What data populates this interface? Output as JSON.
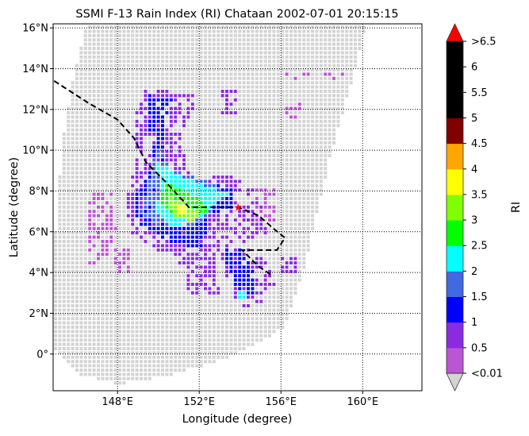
{
  "chart_data": {
    "type": "heatmap",
    "title": "SSMI F-13 Rain Index (RI) Chataan 2002-07-01 20:15:15",
    "xlabel": "Longitude (degree)",
    "ylabel": "Latitude (degree)",
    "xlim": [
      144.85,
      162.9
    ],
    "ylim": [
      -1.8,
      16.2
    ],
    "grid": true,
    "x_ticks": [
      {
        "value": 148,
        "label": "148°E"
      },
      {
        "value": 152,
        "label": "152°E"
      },
      {
        "value": 156,
        "label": "156°E"
      },
      {
        "value": 160,
        "label": "160°E"
      }
    ],
    "y_ticks": [
      {
        "value": 0,
        "label": "0°"
      },
      {
        "value": 2,
        "label": "2°N"
      },
      {
        "value": 4,
        "label": "4°N"
      },
      {
        "value": 6,
        "label": "6°N"
      },
      {
        "value": 8,
        "label": "8°N"
      },
      {
        "value": 10,
        "label": "10°N"
      },
      {
        "value": 12,
        "label": "12°N"
      },
      {
        "value": 14,
        "label": "14°N"
      },
      {
        "value": 16,
        "label": "16°N"
      }
    ],
    "swath_outline": [
      [
        146.4,
        16.2
      ],
      [
        145.7,
        13.4
      ],
      [
        145.2,
        10.3
      ],
      [
        144.85,
        5.6
      ],
      [
        144.85,
        0.2
      ],
      [
        146.2,
        -1.0
      ],
      [
        148.1,
        -1.4
      ],
      [
        150.4,
        -1.0
      ],
      [
        153.1,
        -0.2
      ],
      [
        155.1,
        0.8
      ],
      [
        156.1,
        1.4
      ],
      [
        157.1,
        4.5
      ],
      [
        158.3,
        9.6
      ],
      [
        159.5,
        13.9
      ],
      [
        160.1,
        16.2
      ]
    ],
    "no_rain_color": "#d3d3d3",
    "rain_regions": [
      {
        "ri": 0.8,
        "density": 0.6,
        "polygon": [
          [
            149.24,
            13.08
          ],
          [
            151.76,
            12.89
          ],
          [
            151.57,
            11.91
          ],
          [
            150.99,
            10.74
          ],
          [
            151.37,
            8.99
          ],
          [
            153.7,
            8.79
          ],
          [
            154.87,
            8.01
          ],
          [
            155.26,
            6.06
          ],
          [
            154.0,
            5.28
          ],
          [
            152.73,
            4.89
          ],
          [
            151.57,
            4.11
          ],
          [
            150.4,
            4.89
          ],
          [
            148.46,
            6.06
          ],
          [
            148.27,
            7.62
          ],
          [
            148.85,
            9.57
          ],
          [
            148.85,
            11.91
          ]
        ]
      },
      {
        "ri": 0.3,
        "density": 0.6,
        "polygon": [
          [
            146.52,
            8.01
          ],
          [
            147.68,
            8.01
          ],
          [
            147.88,
            6.06
          ],
          [
            147.49,
            4.5
          ],
          [
            146.52,
            4.5
          ],
          [
            146.44,
            6.45
          ]
        ]
      },
      {
        "ri": 0.3,
        "density": 0.5,
        "polygon": [
          [
            147.68,
            5.28
          ],
          [
            148.66,
            5.28
          ],
          [
            148.66,
            3.72
          ],
          [
            147.68,
            3.72
          ]
        ]
      },
      {
        "ri": 0.5,
        "density": 0.55,
        "polygon": [
          [
            151.18,
            4.89
          ],
          [
            152.73,
            4.89
          ],
          [
            152.93,
            2.94
          ],
          [
            151.18,
            2.94
          ]
        ]
      },
      {
        "ri": 0.8,
        "density": 0.6,
        "polygon": [
          [
            152.93,
            5.67
          ],
          [
            154.29,
            5.48
          ],
          [
            155.26,
            4.5
          ],
          [
            155.65,
            3.53
          ],
          [
            155.07,
            2.55
          ],
          [
            153.9,
            2.36
          ],
          [
            153.12,
            4.11
          ]
        ]
      },
      {
        "ri": 0.8,
        "density": 0.8,
        "polygon": [
          [
            155.99,
            4.89
          ],
          [
            156.77,
            4.89
          ],
          [
            156.77,
            3.92
          ],
          [
            155.99,
            3.92
          ]
        ]
      },
      {
        "ri": 0.5,
        "density": 0.45,
        "polygon": [
          [
            152.93,
            13.0
          ],
          [
            153.9,
            13.0
          ],
          [
            153.9,
            11.91
          ],
          [
            152.93,
            11.91
          ]
        ]
      },
      {
        "ri": 0.3,
        "density": 0.45,
        "polygon": [
          [
            156.03,
            12.38
          ],
          [
            157.0,
            12.38
          ],
          [
            157.0,
            11.52
          ],
          [
            156.03,
            11.52
          ]
        ]
      },
      {
        "ri": 0.3,
        "density": 0.35,
        "polygon": [
          [
            155.96,
            13.86
          ],
          [
            159.09,
            13.86
          ],
          [
            159.09,
            13.47
          ],
          [
            155.96,
            13.47
          ]
        ]
      },
      {
        "ri": 0.3,
        "density": 0.55,
        "polygon": [
          [
            154.67,
            8.21
          ],
          [
            155.65,
            8.21
          ],
          [
            155.65,
            6.45
          ],
          [
            154.67,
            6.45
          ]
        ]
      },
      {
        "ri": 1.3,
        "density": 0.85,
        "polygon": [
          [
            149.43,
            12.77
          ],
          [
            150.6,
            12.69
          ],
          [
            150.21,
            11.52
          ],
          [
            150.21,
            9.18
          ],
          [
            152.15,
            8.6
          ],
          [
            153.51,
            8.21
          ],
          [
            153.51,
            7.23
          ],
          [
            152.35,
            6.84
          ],
          [
            152.15,
            5.28
          ],
          [
            150.6,
            5.48
          ],
          [
            149.04,
            6.26
          ],
          [
            148.66,
            7.62
          ],
          [
            149.63,
            9.18
          ],
          [
            149.43,
            11.52
          ]
        ]
      },
      {
        "ri": 1.3,
        "density": 0.85,
        "polygon": [
          [
            153.12,
            5.28
          ],
          [
            153.9,
            5.28
          ],
          [
            154.68,
            4.11
          ],
          [
            154.68,
            2.94
          ],
          [
            153.9,
            2.86
          ],
          [
            153.32,
            4.11
          ]
        ]
      },
      {
        "ri": 1.8,
        "density": 0.9,
        "polygon": [
          [
            149.82,
            10.35
          ],
          [
            150.6,
            9.18
          ],
          [
            152.73,
            8.4
          ],
          [
            153.32,
            7.82
          ],
          [
            152.54,
            7.04
          ],
          [
            151.57,
            6.26
          ],
          [
            150.0,
            6.26
          ],
          [
            149.04,
            7.04
          ],
          [
            149.43,
            8.4
          ]
        ]
      },
      {
        "ri": 2.3,
        "density": 1,
        "polygon": [
          [
            149.82,
            9.57
          ],
          [
            150.6,
            8.99
          ],
          [
            152.54,
            8.21
          ],
          [
            153.32,
            7.93
          ],
          [
            152.73,
            7.43
          ],
          [
            151.76,
            6.65
          ],
          [
            150.6,
            6.26
          ],
          [
            149.82,
            7.04
          ],
          [
            150.01,
            8.21
          ]
        ]
      },
      {
        "ri": 2.3,
        "density": 1,
        "polygon": [
          [
            153.9,
            3.14
          ],
          [
            154.29,
            3.14
          ],
          [
            154.29,
            2.75
          ],
          [
            153.9,
            2.75
          ]
        ]
      },
      {
        "ri": 2.8,
        "density": 1,
        "polygon": [
          [
            150.21,
            8.6
          ],
          [
            150.99,
            8.21
          ],
          [
            151.96,
            7.62
          ],
          [
            152.35,
            7.15
          ],
          [
            151.76,
            6.65
          ],
          [
            150.79,
            6.84
          ],
          [
            150.01,
            7.43
          ]
        ]
      },
      {
        "ri": 3.3,
        "density": 1,
        "polygon": [
          [
            150.4,
            7.82
          ],
          [
            151.37,
            7.43
          ],
          [
            151.96,
            6.96
          ],
          [
            151.57,
            6.57
          ],
          [
            150.6,
            6.84
          ]
        ]
      },
      {
        "ri": 3.8,
        "density": 1,
        "polygon": [
          [
            150.87,
            7.43
          ],
          [
            151.3,
            7.43
          ],
          [
            151.3,
            7.04
          ],
          [
            150.87,
            7.04
          ]
        ]
      }
    ],
    "track": [
      [
        144.9,
        13.4
      ],
      [
        146.6,
        12.3
      ],
      [
        148.0,
        11.5
      ],
      [
        148.8,
        10.6
      ],
      [
        149.4,
        9.4
      ],
      [
        150.4,
        8.4
      ],
      [
        151.5,
        7.2
      ],
      [
        152.4,
        7.2
      ],
      [
        153.9,
        7.2
      ],
      [
        154.9,
        6.8
      ],
      [
        155.7,
        6.1
      ],
      [
        156.2,
        5.7
      ],
      [
        155.8,
        5.1
      ],
      [
        154.1,
        5.1
      ],
      [
        154.9,
        4.3
      ],
      [
        155.5,
        3.9
      ]
    ],
    "storm_position": [
      153.9,
      7.2
    ],
    "colorbar": {
      "label": "RI",
      "bounds": [
        0.01,
        0.5,
        1,
        1.5,
        2,
        2.5,
        3,
        3.5,
        4,
        4.5,
        5,
        5.5,
        6,
        6.5
      ],
      "tick_labels": [
        "<0.01",
        "0.5",
        "1",
        "1.5",
        "2",
        "2.5",
        "3",
        "3.5",
        "4",
        "4.5",
        "5",
        "5.5",
        "6",
        ">6.5"
      ],
      "colors": [
        "#ba55d3",
        "#8a2be2",
        "#0000ff",
        "#4169e1",
        "#00ffff",
        "#00ff00",
        "#7fff00",
        "#ffff00",
        "#ffa500",
        "#800000",
        "#000000",
        "#000000",
        "#000000"
      ],
      "over_color": "#ff0000",
      "under_color": "#d3d3d3"
    }
  }
}
